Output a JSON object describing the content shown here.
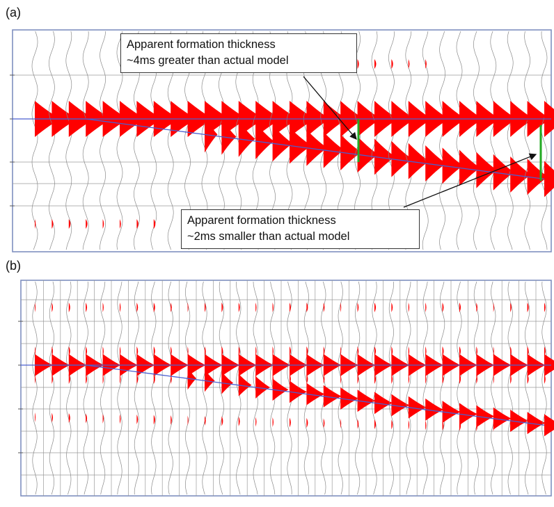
{
  "panels": [
    {
      "label": "(a)"
    },
    {
      "label": "(b)"
    }
  ],
  "callouts": {
    "top": {
      "line1": "Apparent formation thickness",
      "line2": "~4ms greater than actual model"
    },
    "bottom": {
      "line1": "Apparent formation thickness",
      "line2": "~2ms smaller than actual model"
    }
  },
  "colors": {
    "fill": "#ff0000",
    "horizon": "#4a5fd0",
    "grid": "#9a9a9a",
    "frame": "#7f8fbf",
    "trace": "#8a8a8a",
    "thickness_marker": "#22aa22"
  },
  "traces": 31
}
